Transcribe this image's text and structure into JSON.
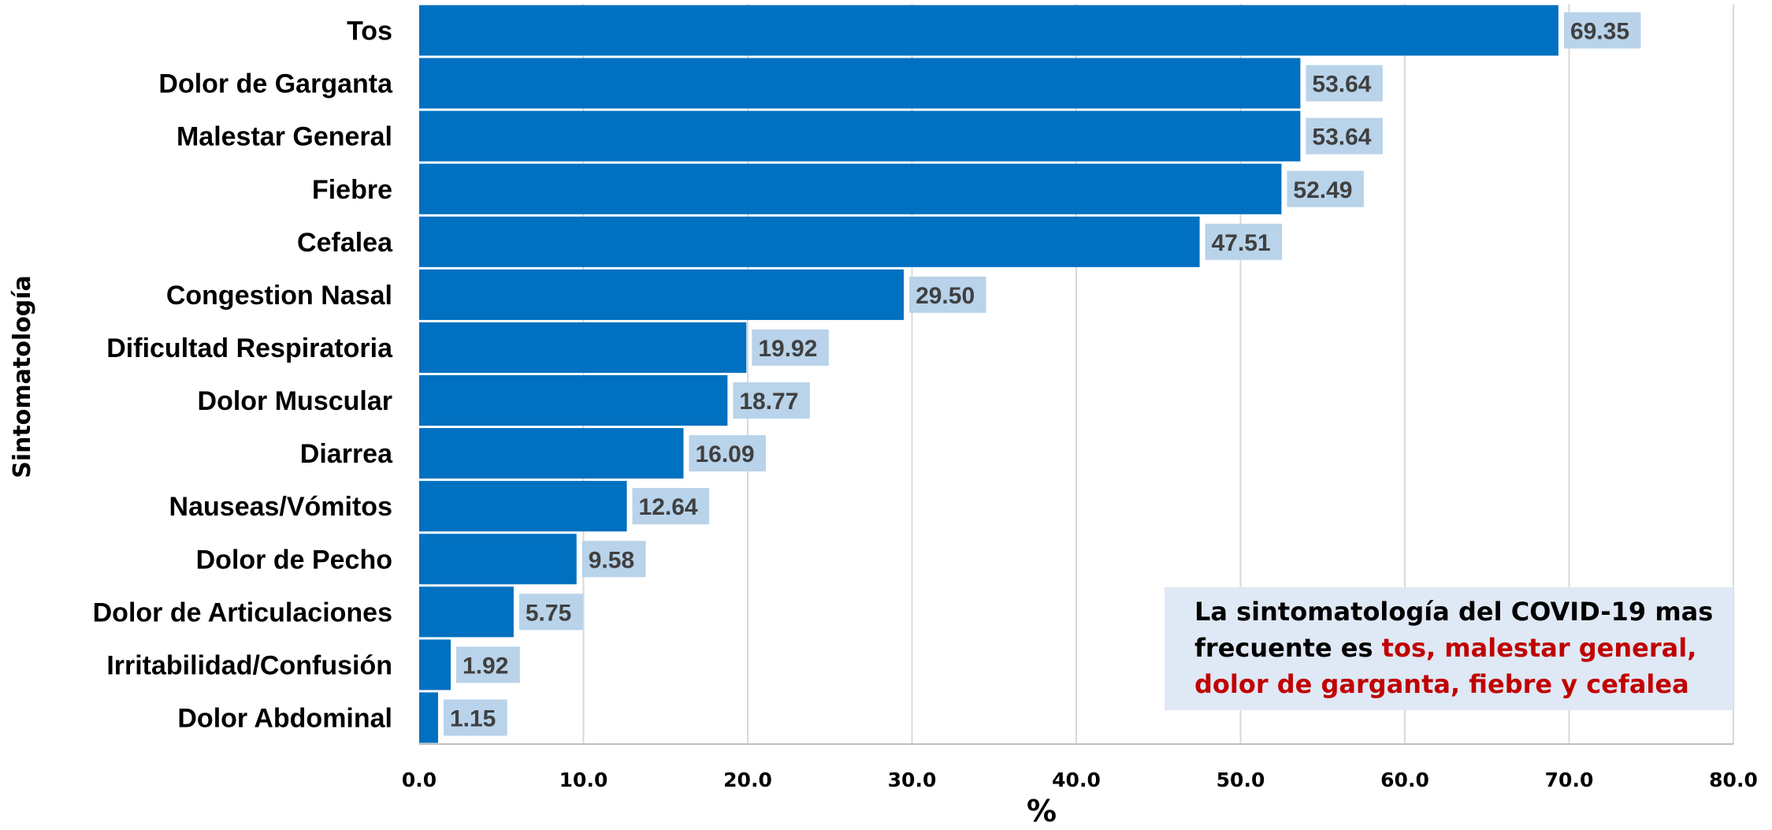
{
  "chart_data": {
    "type": "bar",
    "orientation": "horizontal",
    "categories": [
      "Tos",
      "Dolor de Garganta",
      "Malestar General",
      "Fiebre",
      "Cefalea",
      "Congestion Nasal",
      "Dificultad Respiratoria",
      "Dolor Muscular",
      "Diarrea",
      "Nauseas/Vómitos",
      "Dolor de Pecho",
      "Dolor de Articulaciones",
      "Irritabilidad/Confusión",
      "Dolor Abdominal"
    ],
    "values": [
      69.35,
      53.64,
      53.64,
      52.49,
      47.51,
      29.5,
      19.92,
      18.77,
      16.09,
      12.64,
      9.58,
      5.75,
      1.92,
      1.15
    ],
    "value_labels": [
      "69.35",
      "53.64",
      "53.64",
      "52.49",
      "47.51",
      "29.50",
      "19.92",
      "18.77",
      "16.09",
      "12.64",
      "9.58",
      "5.75",
      "1.92",
      "1.15"
    ],
    "xlabel": "%",
    "ylabel": "Sintomatología",
    "xlim": [
      0,
      80
    ],
    "xticks": [
      "0.0",
      "10.0",
      "20.0",
      "30.0",
      "40.0",
      "50.0",
      "60.0",
      "70.0",
      "80.0"
    ],
    "grid": "vertical",
    "legend": "none",
    "colors": {
      "bar": "#0070c0",
      "value_label_bg": "#b8d3ea",
      "value_label_text": "#404040",
      "grid": "#d9d9d9",
      "highlight": "#c00000",
      "note_bg": "#dfe8f5"
    }
  },
  "note": {
    "line1": "La sintomatología del COVID-19 mas",
    "line2_prefix": "frecuente es ",
    "line2_highlight": "tos, malestar general,",
    "line3_highlight": "dolor de garganta, fiebre y cefalea"
  }
}
